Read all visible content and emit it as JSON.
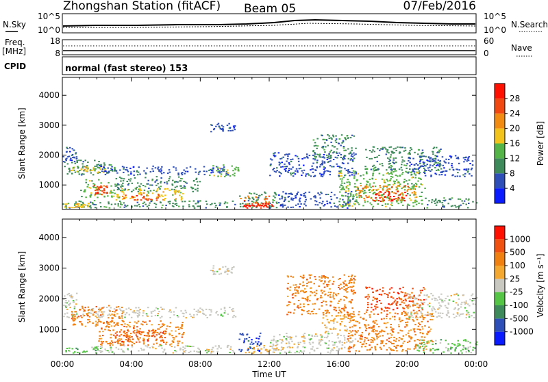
{
  "header": {
    "station": "Zhongshan Station (fitACF)",
    "beam": "Beam 05",
    "date": "07/Feb/2016"
  },
  "top_panels": {
    "nsky_label": "N.Sky",
    "nsky_ticks": [
      "10^5",
      "10^0"
    ],
    "nsearch_label": "N.Search",
    "nsearch_ticks": [
      "10^5",
      "10^0"
    ],
    "freq_label": "Freq.",
    "freq_unit": "[MHz]",
    "freq_ticks": [
      "18",
      "8"
    ],
    "nave_label": "Nave",
    "nave_ticks": [
      "60",
      "0"
    ],
    "cpid_label": "CPID",
    "cpid_text": "normal (fast stereo) 153"
  },
  "chart_data": [
    {
      "type": "heatmap",
      "name": "power",
      "xlabel": "",
      "ylabel": "Slant Range [km]",
      "xlim_hours": [
        0,
        24
      ],
      "ylim": [
        180,
        4600
      ],
      "yticks": [
        "1000",
        "2000",
        "3000",
        "4000"
      ],
      "colorbar_label": "Power [dB]",
      "colorbar_ticks": [
        "4",
        "8",
        "12",
        "16",
        "20",
        "24",
        "28"
      ],
      "colorbar_colors": [
        "#0a1bff",
        "#2f4fb8",
        "#3e8a5a",
        "#55b447",
        "#f2c31a",
        "#f28b12",
        "#f04810",
        "#ff1000"
      ],
      "regions": [
        {
          "x": [
            0.0,
            3.0
          ],
          "y": [
            1350,
            1850
          ],
          "level": 2
        },
        {
          "x": [
            0.0,
            0.8
          ],
          "y": [
            1800,
            2300
          ],
          "level": 1
        },
        {
          "x": [
            0.4,
            2.5
          ],
          "y": [
            1400,
            1650
          ],
          "level": 4
        },
        {
          "x": [
            1.0,
            3.0
          ],
          "y": [
            600,
            1200
          ],
          "level": 3
        },
        {
          "x": [
            1.8,
            2.6
          ],
          "y": [
            700,
            1000
          ],
          "level": 6
        },
        {
          "x": [
            2.2,
            9.8
          ],
          "y": [
            1350,
            1650
          ],
          "level": 1
        },
        {
          "x": [
            3.0,
            8.0
          ],
          "y": [
            800,
            1300
          ],
          "level": 2
        },
        {
          "x": [
            3.0,
            7.0
          ],
          "y": [
            500,
            900
          ],
          "level": 4
        },
        {
          "x": [
            3.5,
            6.0
          ],
          "y": [
            500,
            700
          ],
          "level": 6
        },
        {
          "x": [
            0.0,
            10.0
          ],
          "y": [
            250,
            500
          ],
          "level": 2
        },
        {
          "x": [
            0.0,
            1.5
          ],
          "y": [
            250,
            400
          ],
          "level": 4
        },
        {
          "x": [
            8.5,
            10.2
          ],
          "y": [
            1300,
            1700
          ],
          "level": 3
        },
        {
          "x": [
            10.2,
            12.5
          ],
          "y": [
            250,
            800
          ],
          "level": 2
        },
        {
          "x": [
            10.3,
            12.0
          ],
          "y": [
            300,
            650
          ],
          "level": 5
        },
        {
          "x": [
            10.5,
            12.2
          ],
          "y": [
            250,
            400
          ],
          "level": 7
        },
        {
          "x": [
            8.5,
            10.0
          ],
          "y": [
            2800,
            3100
          ],
          "level": 1
        },
        {
          "x": [
            12.5,
            17.0
          ],
          "y": [
            250,
            800
          ],
          "level": 1
        },
        {
          "x": [
            12.0,
            17.0
          ],
          "y": [
            1300,
            2100
          ],
          "level": 1
        },
        {
          "x": [
            14.5,
            17.0
          ],
          "y": [
            1900,
            2700
          ],
          "level": 2
        },
        {
          "x": [
            16.0,
            21.0
          ],
          "y": [
            300,
            1500
          ],
          "level": 3
        },
        {
          "x": [
            17.0,
            20.5
          ],
          "y": [
            500,
            1000
          ],
          "level": 5
        },
        {
          "x": [
            18.0,
            20.0
          ],
          "y": [
            450,
            800
          ],
          "level": 7
        },
        {
          "x": [
            17.5,
            22.0
          ],
          "y": [
            1500,
            2300
          ],
          "level": 2
        },
        {
          "x": [
            20.0,
            24.0
          ],
          "y": [
            1300,
            2000
          ],
          "level": 1
        },
        {
          "x": [
            21.0,
            24.0
          ],
          "y": [
            250,
            600
          ],
          "level": 2
        }
      ]
    },
    {
      "type": "heatmap",
      "name": "velocity",
      "xlabel": "Time UT",
      "ylabel": "Slant Range [km]",
      "xlim_hours": [
        0,
        24
      ],
      "ylim": [
        180,
        4600
      ],
      "xticks": [
        "00:00",
        "04:00",
        "08:00",
        "12:00",
        "16:00",
        "20:00",
        "00:00"
      ],
      "yticks": [
        "1000",
        "2000",
        "3000",
        "4000"
      ],
      "colorbar_label": "Velocity [m s⁻¹]",
      "colorbar_ticks": [
        "1000",
        "500",
        "100",
        "25",
        "-25",
        "-100",
        "-500",
        "-1000"
      ],
      "colorbar_colors": [
        "#0a1bff",
        "#2f4fb8",
        "#3e8a5a",
        "#55c545",
        "#c8c8c0",
        "#f5a830",
        "#f08010",
        "#f05010",
        "#ff1000"
      ],
      "regions": [
        {
          "x": [
            0.0,
            10.0
          ],
          "y": [
            1400,
            1750
          ],
          "level": 4
        },
        {
          "x": [
            0.0,
            0.8
          ],
          "y": [
            1750,
            2200
          ],
          "level": 4
        },
        {
          "x": [
            0.5,
            3.5
          ],
          "y": [
            1100,
            1800
          ],
          "level": 6
        },
        {
          "x": [
            2.0,
            7.0
          ],
          "y": [
            500,
            1300
          ],
          "level": 6
        },
        {
          "x": [
            3.0,
            6.0
          ],
          "y": [
            600,
            1000
          ],
          "level": 7
        },
        {
          "x": [
            0.0,
            2.0
          ],
          "y": [
            250,
            450
          ],
          "level": 3
        },
        {
          "x": [
            2.0,
            10.0
          ],
          "y": [
            250,
            500
          ],
          "level": 4
        },
        {
          "x": [
            8.5,
            10.0
          ],
          "y": [
            2800,
            3100
          ],
          "level": 4
        },
        {
          "x": [
            10.2,
            11.5
          ],
          "y": [
            300,
            900
          ],
          "level": 1
        },
        {
          "x": [
            10.5,
            12.5
          ],
          "y": [
            250,
            500
          ],
          "level": 5
        },
        {
          "x": [
            12.0,
            17.0
          ],
          "y": [
            250,
            900
          ],
          "level": 4
        },
        {
          "x": [
            13.0,
            17.0
          ],
          "y": [
            1500,
            2800
          ],
          "level": 6
        },
        {
          "x": [
            15.0,
            17.0
          ],
          "y": [
            900,
            1500
          ],
          "level": 5
        },
        {
          "x": [
            16.5,
            21.5
          ],
          "y": [
            300,
            1600
          ],
          "level": 6
        },
        {
          "x": [
            17.5,
            21.0
          ],
          "y": [
            1600,
            2400
          ],
          "level": 7
        },
        {
          "x": [
            20.0,
            24.0
          ],
          "y": [
            1400,
            2200
          ],
          "level": 4
        },
        {
          "x": [
            20.5,
            24.0
          ],
          "y": [
            250,
            700
          ],
          "level": 3
        }
      ]
    }
  ]
}
